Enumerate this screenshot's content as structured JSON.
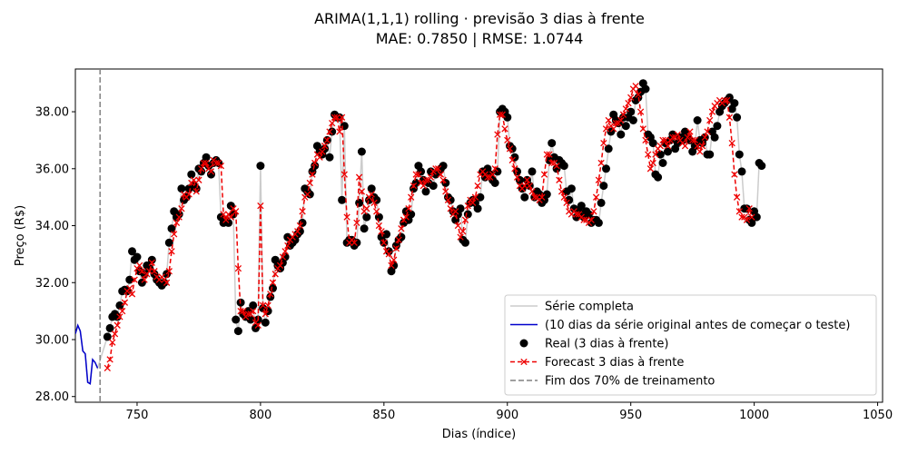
{
  "chart_data": {
    "type": "line",
    "title": "ARIMA(1,1,1) rolling · previsão 3 dias à frente",
    "subtitle": "MAE: 0.7850 | RMSE: 1.0744",
    "xlabel": "Dias (índice)",
    "ylabel": "Preço (R$)",
    "xlim": [
      725,
      1052
    ],
    "ylim": [
      27.8,
      39.5
    ],
    "xticks": [
      "750",
      "800",
      "850",
      "900",
      "950",
      "1000",
      "1050"
    ],
    "yticks": [
      "28.00",
      "30.00",
      "32.00",
      "34.00",
      "36.00",
      "38.00"
    ],
    "grid": false,
    "legend_position": "lower-right",
    "train_end_x": 735,
    "colors": {
      "full_series": "#cccccc",
      "context": "#0000cc",
      "real": "#000000",
      "forecast": "#ee0000",
      "train_end": "#808080"
    },
    "legend": [
      {
        "key": "full",
        "label": "Série completa"
      },
      {
        "key": "context",
        "label": "(10 dias da série original antes de começar o teste)"
      },
      {
        "key": "real",
        "label": "Real (3 dias à frente)"
      },
      {
        "key": "forecast",
        "label": "Forecast 3 dias à frente"
      },
      {
        "key": "train_end",
        "label": "Fim dos 70% de treinamento"
      }
    ],
    "context_series": {
      "x": [
        725,
        726,
        727,
        728,
        729,
        730,
        731,
        732,
        733,
        734
      ],
      "y": [
        30.2,
        30.5,
        30.3,
        29.6,
        29.5,
        28.5,
        28.45,
        29.3,
        29.2,
        29.0
      ]
    },
    "real_series": {
      "start_x": 738,
      "y": [
        30.1,
        30.4,
        30.8,
        30.9,
        30.8,
        31.2,
        31.7,
        31.75,
        31.7,
        32.1,
        33.1,
        32.8,
        32.9,
        32.4,
        32.0,
        32.3,
        32.6,
        32.5,
        32.8,
        32.3,
        32.1,
        32.0,
        31.9,
        32.0,
        32.3,
        33.4,
        33.9,
        34.5,
        34.3,
        34.4,
        35.3,
        34.9,
        35.0,
        35.3,
        35.8,
        35.4,
        35.3,
        36.0,
        35.9,
        36.2,
        36.4,
        36.1,
        35.8,
        36.2,
        36.3,
        36.2,
        34.3,
        34.1,
        34.2,
        34.1,
        34.7,
        34.4,
        30.7,
        30.3,
        31.3,
        30.9,
        30.8,
        31.0,
        30.7,
        31.2,
        30.4,
        30.7,
        36.1,
        31.1,
        30.6,
        31.0,
        31.5,
        31.8,
        32.8,
        32.6,
        32.5,
        32.7,
        32.9,
        33.6,
        33.3,
        33.4,
        33.5,
        33.7,
        33.8,
        34.1,
        35.3,
        35.2,
        35.1,
        35.9,
        36.1,
        36.8,
        36.6,
        36.5,
        36.7,
        37.0,
        36.4,
        37.3,
        37.9,
        37.8,
        37.8,
        34.9,
        37.5,
        33.4,
        33.5,
        33.5,
        33.3,
        33.4,
        34.8,
        36.6,
        33.9,
        34.3,
        34.9,
        35.3,
        35.0,
        34.9,
        34.3,
        33.6,
        33.4,
        33.7,
        33.1,
        32.4,
        32.6,
        33.3,
        33.5,
        33.6,
        34.1,
        34.5,
        34.2,
        34.4,
        35.3,
        35.5,
        36.1,
        35.9,
        35.6,
        35.2,
        35.5,
        35.9,
        35.4,
        35.8,
        35.9,
        36.0,
        36.1,
        35.5,
        35.0,
        34.9,
        34.5,
        34.2,
        34.4,
        34.6,
        33.5,
        33.4,
        34.4,
        34.8,
        34.9,
        34.8,
        34.6,
        35.0,
        35.9,
        35.7,
        36.0,
        35.8,
        35.6,
        35.5,
        35.9,
        38.0,
        38.1,
        38.0,
        37.8,
        36.8,
        36.7,
        36.4,
        35.9,
        35.6,
        35.3,
        35.0,
        35.6,
        35.4,
        35.9,
        35.0,
        35.2,
        35.1,
        34.8,
        34.9,
        35.1,
        36.3,
        36.9,
        36.4,
        36.0,
        36.3,
        36.2,
        36.1,
        35.2,
        34.9,
        35.3,
        34.6,
        34.3,
        34.5,
        34.7,
        34.3,
        34.5,
        34.4,
        34.1,
        34.2,
        34.2,
        34.1,
        34.8,
        35.4,
        36.0,
        36.7,
        37.3,
        37.9,
        37.7,
        37.6,
        37.2,
        37.8,
        37.5,
        37.8,
        38.0,
        37.7,
        38.4,
        38.5,
        38.7,
        39.0,
        38.8,
        37.2,
        37.1,
        36.9,
        35.8,
        35.7,
        36.5,
        36.2,
        36.9,
        36.6,
        37.0,
        37.2,
        36.7,
        36.9,
        37.1,
        37.0,
        37.3,
        37.1,
        37.0,
        36.6,
        36.8,
        37.7,
        37.0,
        36.9,
        37.1,
        36.5,
        36.5,
        37.3,
        37.1,
        37.5,
        38.0,
        38.2,
        38.3,
        38.4,
        38.5,
        38.1,
        38.3,
        37.8,
        36.5,
        35.9,
        34.6,
        34.6,
        34.2,
        34.1,
        34.5,
        34.3,
        36.2,
        36.1
      ]
    },
    "forecast_series": {
      "start_x": 738,
      "y": [
        29.0,
        29.3,
        29.9,
        30.2,
        30.5,
        30.8,
        31.0,
        31.3,
        31.7,
        31.8,
        31.6,
        32.1,
        32.5,
        32.6,
        32.4,
        32.1,
        32.3,
        32.4,
        32.7,
        32.4,
        32.2,
        32.1,
        32.2,
        32.1,
        32.0,
        32.4,
        33.1,
        33.7,
        34.1,
        34.3,
        34.6,
        35.1,
        35.0,
        35.1,
        35.5,
        35.6,
        35.2,
        35.6,
        36.0,
        36.2,
        36.2,
        36.0,
        35.9,
        36.3,
        36.2,
        36.2,
        36.1,
        34.4,
        34.2,
        34.4,
        34.3,
        34.6,
        34.5,
        32.5,
        31.0,
        31.0,
        30.8,
        30.9,
        30.9,
        31.0,
        30.6,
        30.5,
        34.7,
        31.2,
        30.9,
        31.2,
        31.6,
        32.0,
        32.3,
        32.5,
        32.6,
        32.9,
        33.1,
        33.3,
        33.5,
        33.6,
        33.7,
        33.8,
        34.0,
        34.5,
        35.0,
        35.1,
        35.5,
        35.8,
        36.2,
        36.5,
        36.4,
        36.6,
        36.8,
        37.0,
        37.3,
        37.6,
        37.8,
        37.8,
        37.3,
        37.8,
        35.8,
        34.3,
        33.4,
        33.5,
        33.4,
        34.1,
        35.7,
        35.2,
        34.5,
        34.6,
        35.0,
        35.1,
        34.8,
        34.5,
        34.0,
        33.8,
        33.4,
        33.1,
        33.0,
        32.6,
        32.8,
        33.2,
        33.5,
        33.9,
        34.2,
        34.3,
        34.6,
        35.0,
        35.4,
        35.8,
        35.8,
        35.5,
        35.4,
        35.6,
        35.6,
        35.7,
        35.9,
        36.0,
        36.0,
        35.8,
        35.6,
        35.2,
        34.9,
        34.6,
        34.4,
        34.5,
        34.0,
        33.6,
        33.8,
        34.2,
        34.7,
        34.9,
        34.8,
        35.0,
        35.4,
        35.8,
        35.9,
        35.8,
        35.7,
        35.7,
        35.8,
        36.0,
        37.2,
        37.9,
        37.9,
        37.4,
        37.0,
        36.7,
        36.3,
        36.0,
        35.7,
        35.4,
        35.3,
        35.4,
        35.6,
        35.4,
        35.2,
        35.0,
        35.0,
        34.9,
        35.0,
        35.8,
        36.5,
        36.5,
        36.2,
        36.2,
        36.1,
        35.6,
        35.2,
        35.0,
        34.8,
        34.5,
        34.4,
        34.5,
        34.4,
        34.4,
        34.3,
        34.2,
        34.2,
        34.1,
        34.2,
        34.5,
        35.0,
        35.6,
        36.2,
        36.9,
        37.4,
        37.7,
        37.5,
        37.4,
        37.6,
        37.6,
        37.7,
        37.9,
        38.1,
        38.3,
        38.5,
        38.8,
        38.9,
        38.6,
        38.0,
        37.4,
        37.0,
        36.5,
        36.0,
        36.2,
        36.5,
        36.7,
        36.8,
        37.0,
        37.0,
        36.8,
        37.0,
        37.1,
        37.1,
        37.2,
        37.0,
        36.9,
        36.8,
        37.1,
        37.3,
        37.0,
        37.0,
        36.8,
        36.6,
        36.8,
        37.1,
        37.3,
        37.7,
        38.0,
        38.2,
        38.3,
        38.4,
        38.3,
        38.4,
        38.4,
        37.8,
        36.9,
        35.8,
        35.0,
        34.5,
        34.3,
        34.3,
        34.2,
        34.6,
        34.3
      ]
    }
  }
}
